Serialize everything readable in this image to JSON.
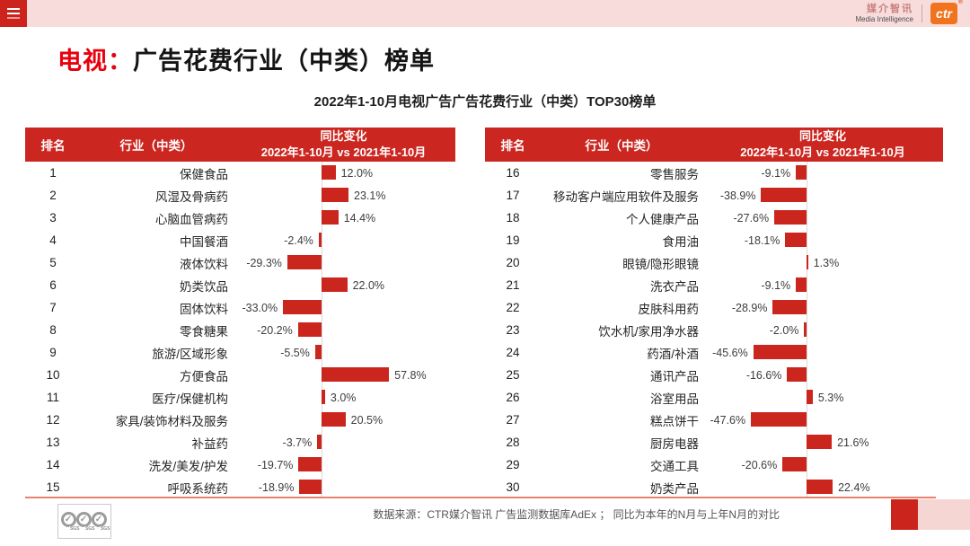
{
  "topbar": {
    "brand_cn": "媒介智讯",
    "brand_en": "Media Intelligence",
    "logo": "ctr",
    "reg": "®"
  },
  "title": {
    "highlight": "电视：",
    "rest": "广告花费行业（中类）榜单"
  },
  "subtitle": "2022年1-10月电视广告广告花费行业（中类）TOP30榜单",
  "table_header": {
    "rank": "排名",
    "industry": "行业（中类）",
    "change_line1": "同比变化",
    "change_line2": "2022年1-10月 vs 2021年1-10月"
  },
  "chart_data": {
    "type": "bar",
    "orientation": "horizontal",
    "value_unit": "%",
    "title": "2022年1-10月电视广告广告花费行业（中类）TOP30榜单",
    "bar_color": "#cb261d",
    "axis_color": "#d9d9d9",
    "items": [
      {
        "rank": 1,
        "category": "保健食品",
        "value": 12.0
      },
      {
        "rank": 2,
        "category": "风湿及骨病药",
        "value": 23.1
      },
      {
        "rank": 3,
        "category": "心脑血管病药",
        "value": 14.4
      },
      {
        "rank": 4,
        "category": "中国餐酒",
        "value": -2.4
      },
      {
        "rank": 5,
        "category": "液体饮料",
        "value": -29.3
      },
      {
        "rank": 6,
        "category": "奶类饮品",
        "value": 22.0
      },
      {
        "rank": 7,
        "category": "固体饮料",
        "value": -33.0
      },
      {
        "rank": 8,
        "category": "零食糖果",
        "value": -20.2
      },
      {
        "rank": 9,
        "category": "旅游/区域形象",
        "value": -5.5
      },
      {
        "rank": 10,
        "category": "方便食品",
        "value": 57.8
      },
      {
        "rank": 11,
        "category": "医疗/保健机构",
        "value": 3.0
      },
      {
        "rank": 12,
        "category": "家具/装饰材料及服务",
        "value": 20.5
      },
      {
        "rank": 13,
        "category": "补益药",
        "value": -3.7
      },
      {
        "rank": 14,
        "category": "洗发/美发/护发",
        "value": -19.7
      },
      {
        "rank": 15,
        "category": "呼吸系统药",
        "value": -18.9
      },
      {
        "rank": 16,
        "category": "零售服务",
        "value": -9.1
      },
      {
        "rank": 17,
        "category": "移动客户端应用软件及服务",
        "value": -38.9
      },
      {
        "rank": 18,
        "category": "个人健康产品",
        "value": -27.6
      },
      {
        "rank": 19,
        "category": "食用油",
        "value": -18.1
      },
      {
        "rank": 20,
        "category": "眼镜/隐形眼镜",
        "value": 1.3
      },
      {
        "rank": 21,
        "category": "洗衣产品",
        "value": -9.1
      },
      {
        "rank": 22,
        "category": "皮肤科用药",
        "value": -28.9
      },
      {
        "rank": 23,
        "category": "饮水机/家用净水器",
        "value": -2.0
      },
      {
        "rank": 24,
        "category": "药酒/补酒",
        "value": -45.6
      },
      {
        "rank": 25,
        "category": "通讯产品",
        "value": -16.6
      },
      {
        "rank": 26,
        "category": "浴室用品",
        "value": 5.3
      },
      {
        "rank": 27,
        "category": "糕点饼干",
        "value": -47.6
      },
      {
        "rank": 28,
        "category": "厨房电器",
        "value": 21.6
      },
      {
        "rank": 29,
        "category": "交通工具",
        "value": -20.6
      },
      {
        "rank": 30,
        "category": "奶类产品",
        "value": 22.4
      }
    ]
  },
  "footer": {
    "source_text": "数据来源：CTR媒介智讯 广告监测数据库AdEx ； 同比为本年的N月与上年N月的对比",
    "sgs_label": "SGS",
    "check_glyph": "✓"
  },
  "colors": {
    "accent_red": "#e8000d",
    "header_red": "#cb2620",
    "bar_red": "#cb261d",
    "topbar_pink": "#f8dbdb",
    "footer_line": "#e8826e",
    "ctr_orange": "#f0741e"
  }
}
